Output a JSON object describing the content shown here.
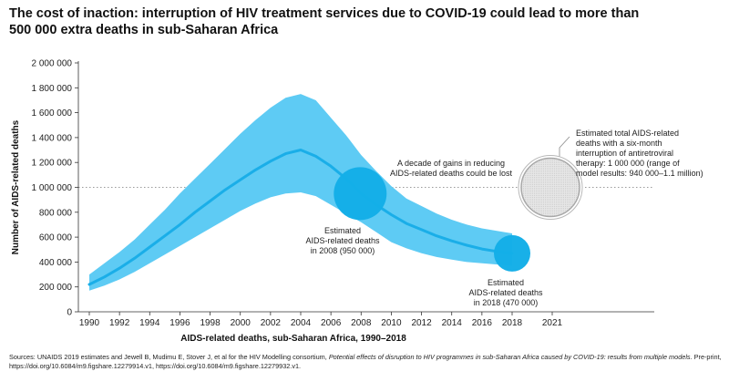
{
  "title_line1": "The cost of inaction: interruption of HIV treatment services due to COVID-19 could lead to more than",
  "title_line2": "500 000 extra deaths in sub-Saharan Africa",
  "chart_data": {
    "type": "line",
    "title": "The cost of inaction: interruption of HIV treatment services due to COVID-19 could lead to more than 500 000 extra deaths in sub-Saharan Africa",
    "xlabel": "AIDS-related deaths, sub-Saharan Africa, 1990–2018",
    "ylabel": "Number of AIDS-related deaths",
    "xlim": [
      1990,
      2021
    ],
    "ylim": [
      0,
      2000000
    ],
    "x_ticks": [
      "1990",
      "1992",
      "1994",
      "1996",
      "1998",
      "2000",
      "2002",
      "2004",
      "2006",
      "2008",
      "2010",
      "2012",
      "2014",
      "2016",
      "2018",
      "2021"
    ],
    "y_ticks": [
      "0",
      "200 000",
      "400 000",
      "600 000",
      "800 000",
      "1 000 000",
      "1 200 000",
      "1 400 000",
      "1 600 000",
      "1 800 000",
      "2 000 000"
    ],
    "reference_line": 1000000,
    "series": [
      {
        "name": "AIDS-related deaths (estimate)",
        "color": "#1aaee8",
        "x": [
          1990,
          1991,
          1992,
          1993,
          1994,
          1995,
          1996,
          1997,
          1998,
          1999,
          2000,
          2001,
          2002,
          2003,
          2004,
          2005,
          2006,
          2007,
          2008,
          2009,
          2010,
          2011,
          2012,
          2013,
          2014,
          2015,
          2016,
          2017,
          2018
        ],
        "values": [
          220000,
          280000,
          350000,
          430000,
          520000,
          610000,
          700000,
          800000,
          890000,
          980000,
          1060000,
          1140000,
          1210000,
          1270000,
          1300000,
          1250000,
          1170000,
          1070000,
          950000,
          860000,
          780000,
          710000,
          660000,
          610000,
          570000,
          535000,
          505000,
          485000,
          470000
        ]
      },
      {
        "name": "Uncertainty range (lower)",
        "color": "#5ecbf4",
        "x": [
          1990,
          1991,
          1992,
          1993,
          1994,
          1995,
          1996,
          1997,
          1998,
          1999,
          2000,
          2001,
          2002,
          2003,
          2004,
          2005,
          2006,
          2007,
          2008,
          2009,
          2010,
          2011,
          2012,
          2013,
          2014,
          2015,
          2016,
          2017,
          2018
        ],
        "values": [
          170000,
          210000,
          260000,
          320000,
          390000,
          460000,
          530000,
          600000,
          670000,
          740000,
          810000,
          870000,
          920000,
          950000,
          960000,
          930000,
          860000,
          790000,
          720000,
          640000,
          560000,
          510000,
          470000,
          440000,
          420000,
          400000,
          390000,
          380000,
          370000
        ]
      },
      {
        "name": "Uncertainty range (upper)",
        "color": "#5ecbf4",
        "x": [
          1990,
          1991,
          1992,
          1993,
          1994,
          1995,
          1996,
          1997,
          1998,
          1999,
          2000,
          2001,
          2002,
          2003,
          2004,
          2005,
          2006,
          2007,
          2008,
          2009,
          2010,
          2011,
          2012,
          2013,
          2014,
          2015,
          2016,
          2017,
          2018
        ],
        "values": [
          300000,
          390000,
          480000,
          580000,
          700000,
          820000,
          950000,
          1070000,
          1190000,
          1310000,
          1430000,
          1540000,
          1640000,
          1720000,
          1750000,
          1700000,
          1560000,
          1420000,
          1260000,
          1130000,
          1010000,
          910000,
          850000,
          790000,
          740000,
          700000,
          670000,
          650000,
          630000
        ]
      }
    ],
    "highlights": [
      {
        "x": 2008,
        "y": 950000,
        "label_lines": [
          "Estimated",
          "AIDS-related deaths",
          "in 2008 (950 000)"
        ],
        "color": "#13aee8"
      },
      {
        "x": 2018,
        "y": 470000,
        "label_lines": [
          "Estimated",
          "AIDS-related deaths",
          "in 2018 (470 000)"
        ],
        "color": "#13aee8"
      },
      {
        "x": 2021,
        "y": 1000000,
        "label_lines": [
          "Estimated total AIDS-related",
          "deaths with a six-month",
          "interruption of antiretroviral",
          "therapy: 1 000 000 (range of",
          "model results: 940 000–1.1 million)"
        ],
        "color": "#d9d9d9"
      }
    ],
    "annotations": [
      {
        "x": 2006,
        "y": 1150000,
        "text_lines": [
          "A decade of gains in reducing",
          "AIDS-related deaths could be lost"
        ]
      }
    ]
  },
  "sources": {
    "prefix": "Sources: UNAIDS 2019 estimates and Jewell B, Mudimu E, Stover J, et al for the HIV Modelling consortium, ",
    "italic": "Potential effects of disruption to HIV programmes in sub-Saharan Africa caused by COVID-19: results from multiple models.",
    "suffix": " Pre-print, https://doi.org/10.6084/m9.figshare.12279914.v1, https://doi.org/10.6084/m9.figshare.12279932.v1."
  }
}
